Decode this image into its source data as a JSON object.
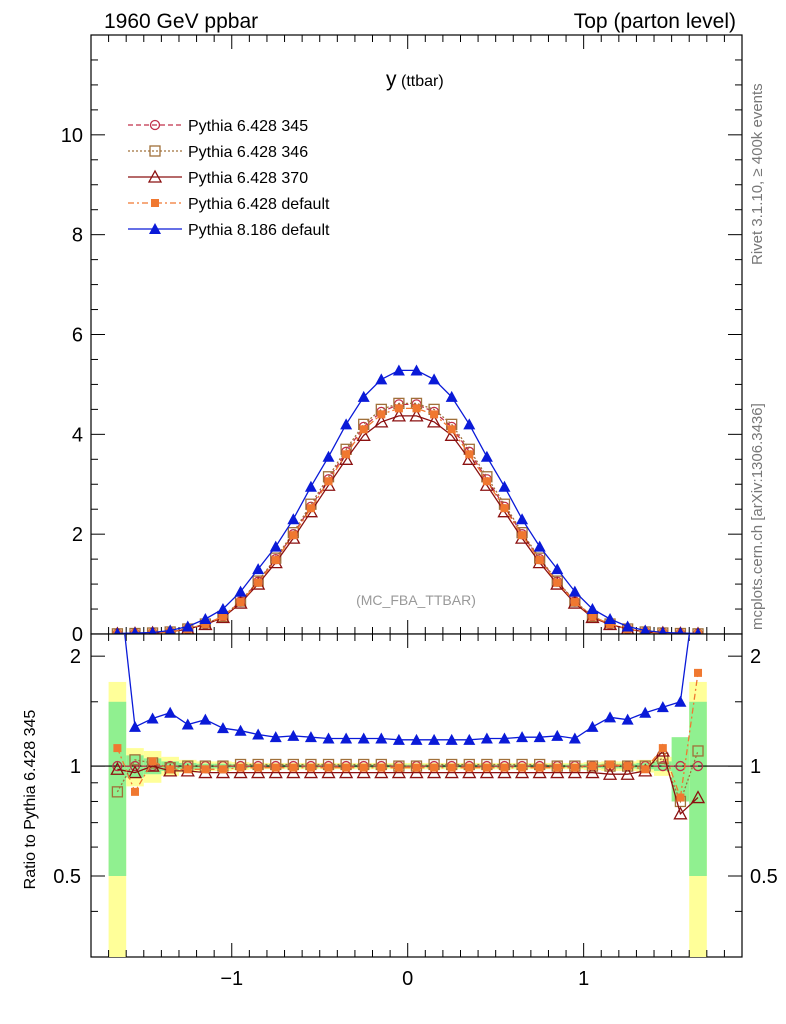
{
  "header": {
    "left": "1960 GeV ppbar",
    "right": "Top (parton level)"
  },
  "side_labels": {
    "rivet": "Rivet 3.1.10, ≥ 400k events",
    "mcplots": "mcplots.cern.ch [arXiv:1306.3436]"
  },
  "chart_data": [
    {
      "type": "line",
      "title": "y",
      "title_sub": "(ttbar)",
      "watermark": "(MC_FBA_TTBAR)",
      "xlabel": "",
      "ylabel": "",
      "xlim": [
        -1.8,
        1.9
      ],
      "ylim": [
        0,
        12
      ],
      "yticks": [
        0,
        2,
        4,
        6,
        8,
        10
      ],
      "ytick_labels": [
        "0",
        "2",
        "4",
        "6",
        "8",
        "10"
      ],
      "legend_position": "top-left",
      "x": [
        -1.65,
        -1.55,
        -1.45,
        -1.35,
        -1.25,
        -1.15,
        -1.05,
        -0.95,
        -0.85,
        -0.75,
        -0.65,
        -0.55,
        -0.45,
        -0.35,
        -0.25,
        -0.15,
        -0.05,
        0.05,
        0.15,
        0.25,
        0.35,
        0.45,
        0.55,
        0.65,
        0.75,
        0.85,
        0.95,
        1.05,
        1.15,
        1.25,
        1.35,
        1.45,
        1.55,
        1.65
      ],
      "series": [
        {
          "name": "Pythia 6.428 345",
          "color": "#c0304a",
          "dash": "5,3",
          "marker": "circle-open",
          "values": [
            0.003,
            0.01,
            0.02,
            0.04,
            0.1,
            0.2,
            0.35,
            0.65,
            1.05,
            1.5,
            2.0,
            2.55,
            3.1,
            3.65,
            4.15,
            4.45,
            4.6,
            4.6,
            4.45,
            4.15,
            3.65,
            3.1,
            2.55,
            2.0,
            1.5,
            1.05,
            0.65,
            0.35,
            0.2,
            0.1,
            0.04,
            0.02,
            0.01,
            0.003
          ]
        },
        {
          "name": "Pythia 6.428 346",
          "color": "#a0703a",
          "dash": "2,2",
          "marker": "square-open",
          "values": [
            0.003,
            0.01,
            0.02,
            0.04,
            0.1,
            0.2,
            0.35,
            0.66,
            1.06,
            1.52,
            2.03,
            2.6,
            3.15,
            3.7,
            4.2,
            4.5,
            4.62,
            4.62,
            4.5,
            4.2,
            3.7,
            3.15,
            2.6,
            2.03,
            1.52,
            1.06,
            0.66,
            0.35,
            0.2,
            0.1,
            0.04,
            0.02,
            0.01,
            0.003
          ]
        },
        {
          "name": "Pythia 6.428 370",
          "color": "#8b1010",
          "dash": "",
          "marker": "triangle-open",
          "values": [
            0.003,
            0.01,
            0.02,
            0.04,
            0.1,
            0.19,
            0.33,
            0.62,
            1.0,
            1.43,
            1.92,
            2.45,
            2.98,
            3.5,
            3.98,
            4.25,
            4.37,
            4.37,
            4.25,
            3.98,
            3.5,
            2.98,
            2.45,
            1.92,
            1.43,
            1.0,
            0.62,
            0.33,
            0.19,
            0.1,
            0.04,
            0.02,
            0.01,
            0.003
          ]
        },
        {
          "name": "Pythia 6.428 default",
          "color": "#f07830",
          "dash": "6,3,2,3",
          "marker": "square-filled",
          "values": [
            0.003,
            0.01,
            0.02,
            0.04,
            0.1,
            0.2,
            0.35,
            0.64,
            1.03,
            1.48,
            1.98,
            2.52,
            3.06,
            3.6,
            4.1,
            4.4,
            4.52,
            4.52,
            4.4,
            4.1,
            3.6,
            3.06,
            2.52,
            1.98,
            1.48,
            1.03,
            0.64,
            0.35,
            0.2,
            0.1,
            0.04,
            0.02,
            0.01,
            0.003
          ]
        },
        {
          "name": "Pythia 8.186 default",
          "color": "#0a1ad8",
          "dash": "",
          "marker": "triangle-filled",
          "values": [
            0.01,
            0.02,
            0.03,
            0.07,
            0.15,
            0.3,
            0.5,
            0.85,
            1.3,
            1.75,
            2.3,
            2.95,
            3.55,
            4.2,
            4.75,
            5.1,
            5.28,
            5.28,
            5.1,
            4.75,
            4.2,
            3.55,
            2.95,
            2.3,
            1.75,
            1.3,
            0.85,
            0.5,
            0.3,
            0.15,
            0.07,
            0.03,
            0.02,
            0.01
          ]
        }
      ]
    },
    {
      "type": "line",
      "title": "",
      "xlabel": "",
      "ylabel": "Ratio to Pythia 6.428 345",
      "xlim": [
        -1.8,
        1.9
      ],
      "ylim": [
        0.3,
        2.3
      ],
      "yscale": "log",
      "reference_line": 1,
      "yticks": [
        0.5,
        1,
        2
      ],
      "ytick_labels": [
        "0.5",
        "1",
        "2"
      ],
      "xticks": [
        -1,
        0,
        1
      ],
      "xtick_labels": [
        "−1",
        "0",
        "1"
      ],
      "x": [
        -1.65,
        -1.55,
        -1.45,
        -1.35,
        -1.25,
        -1.15,
        -1.05,
        -0.95,
        -0.85,
        -0.75,
        -0.65,
        -0.55,
        -0.45,
        -0.35,
        -0.25,
        -0.15,
        -0.05,
        0.05,
        0.15,
        0.25,
        0.35,
        0.45,
        0.55,
        0.65,
        0.75,
        0.85,
        0.95,
        1.05,
        1.15,
        1.25,
        1.35,
        1.45,
        1.55,
        1.65
      ],
      "bands": {
        "yellow_half": [
          0.7,
          0.12,
          0.1,
          0.06,
          0.04,
          0.03,
          0.03,
          0.025,
          0.02,
          0.02,
          0.02,
          0.02,
          0.02,
          0.02,
          0.02,
          0.02,
          0.02,
          0.02,
          0.02,
          0.02,
          0.02,
          0.02,
          0.02,
          0.02,
          0.02,
          0.02,
          0.02,
          0.025,
          0.03,
          0.03,
          0.04,
          0.06,
          0.12,
          0.7
        ],
        "green_half": [
          0.5,
          0.07,
          0.05,
          0.03,
          0.02,
          0.015,
          0.015,
          0.012,
          0.01,
          0.01,
          0.01,
          0.01,
          0.01,
          0.01,
          0.01,
          0.01,
          0.01,
          0.01,
          0.01,
          0.01,
          0.01,
          0.01,
          0.01,
          0.01,
          0.01,
          0.01,
          0.01,
          0.012,
          0.015,
          0.015,
          0.02,
          0.03,
          0.2,
          0.5
        ]
      },
      "series": [
        {
          "name": "Pythia 6.428 345",
          "color": "#c0304a",
          "values": [
            1,
            1,
            1,
            1,
            1,
            1,
            1,
            1,
            1,
            1,
            1,
            1,
            1,
            1,
            1,
            1,
            1,
            1,
            1,
            1,
            1,
            1,
            1,
            1,
            1,
            1,
            1,
            1,
            1,
            1,
            1,
            1,
            1,
            1
          ]
        },
        {
          "name": "Pythia 6.428 346",
          "color": "#a0703a",
          "values": [
            0.85,
            1.04,
            1.02,
            0.99,
            1.0,
            1.0,
            1.0,
            1.01,
            1.01,
            1.01,
            1.01,
            1.01,
            1.01,
            1.01,
            1.01,
            1.01,
            1.0,
            1.0,
            1.01,
            1.01,
            1.01,
            1.01,
            1.01,
            1.01,
            1.01,
            1.0,
            1.0,
            1.0,
            1.0,
            1.0,
            1.0,
            1.05,
            0.8,
            1.1
          ]
        },
        {
          "name": "Pythia 6.428 370",
          "color": "#8b1010",
          "values": [
            0.98,
            0.96,
            1.0,
            0.97,
            0.97,
            0.96,
            0.96,
            0.96,
            0.96,
            0.96,
            0.96,
            0.96,
            0.96,
            0.96,
            0.96,
            0.96,
            0.96,
            0.96,
            0.96,
            0.96,
            0.96,
            0.96,
            0.96,
            0.96,
            0.96,
            0.96,
            0.96,
            0.96,
            0.95,
            0.95,
            0.97,
            1.1,
            0.74,
            0.82
          ]
        },
        {
          "name": "Pythia 6.428 default",
          "color": "#f07830",
          "values": [
            1.12,
            0.85,
            1.03,
            0.98,
            0.98,
            0.98,
            0.98,
            0.99,
            0.99,
            0.99,
            0.99,
            0.99,
            0.99,
            0.99,
            0.99,
            0.99,
            0.99,
            0.99,
            0.99,
            0.99,
            0.99,
            0.99,
            0.99,
            0.99,
            0.99,
            0.99,
            0.99,
            1.0,
            1.01,
            1.0,
            0.98,
            1.12,
            0.82,
            1.8
          ]
        },
        {
          "name": "Pythia 8.186 default",
          "color": "#0a1ad8",
          "values": [
            3.5,
            1.28,
            1.35,
            1.4,
            1.3,
            1.34,
            1.27,
            1.25,
            1.22,
            1.2,
            1.21,
            1.2,
            1.19,
            1.19,
            1.19,
            1.19,
            1.18,
            1.18,
            1.18,
            1.18,
            1.18,
            1.19,
            1.19,
            1.2,
            1.2,
            1.21,
            1.19,
            1.28,
            1.36,
            1.34,
            1.4,
            1.45,
            1.5,
            3.5
          ]
        }
      ]
    }
  ]
}
